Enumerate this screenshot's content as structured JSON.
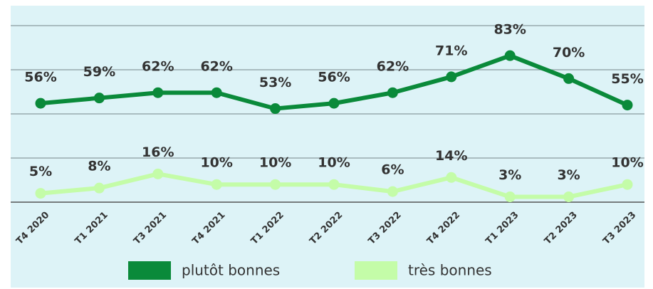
{
  "chart_data": {
    "type": "line",
    "categories": [
      "T4 2020",
      "T1 2021",
      "T3 2021",
      "T4 2021",
      "T1 2022",
      "T2 2022",
      "T3 2022",
      "T4 2022",
      "T1 2023",
      "T2 2023",
      "T3 2023"
    ],
    "series": [
      {
        "name": "plutôt bonnes",
        "color": "#0a8a3a",
        "values": [
          56,
          59,
          62,
          62,
          53,
          56,
          62,
          71,
          83,
          70,
          55
        ],
        "value_labels": [
          "56%",
          "59%",
          "62%",
          "62%",
          "53%",
          "56%",
          "62%",
          "71%",
          "83%",
          "70%",
          "55%"
        ]
      },
      {
        "name": "très bonnes",
        "color": "#c4fca8",
        "values": [
          5,
          8,
          16,
          10,
          10,
          10,
          6,
          14,
          3,
          3,
          10
        ],
        "value_labels": [
          "5%",
          "8%",
          "16%",
          "10%",
          "10%",
          "10%",
          "6%",
          "14%",
          "3%",
          "3%",
          "10%"
        ]
      }
    ],
    "ylim": [
      0,
      100
    ],
    "yticks": [
      0,
      25,
      50,
      75,
      100
    ],
    "grid": true
  }
}
